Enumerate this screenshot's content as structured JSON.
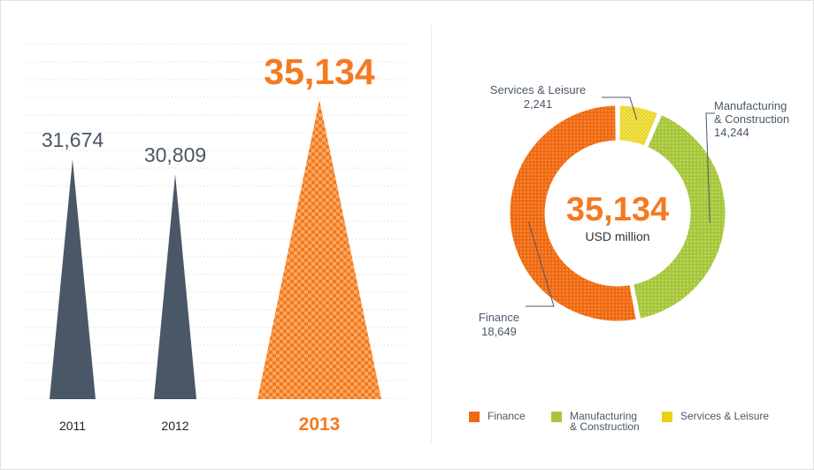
{
  "colors": {
    "dark": "#4a5766",
    "orange": "#f47a20",
    "orange_light": "#f9a863",
    "finance": "#f06a12",
    "manufacturing": "#a6c63a",
    "services": "#e8d214",
    "text": "#4a5868",
    "grid": "#d6d6d6"
  },
  "chart_data": [
    {
      "type": "bar",
      "categories": [
        "2011",
        "2012",
        "2013"
      ],
      "values": [
        31674,
        30809,
        35134
      ],
      "value_labels": [
        "31,674",
        "30,809",
        "35,134"
      ],
      "ylim": [
        17700,
        35134
      ],
      "grid": true,
      "highlight_index": 2
    },
    {
      "type": "pie",
      "center_value": "35,134",
      "center_unit": "USD million",
      "slices": [
        {
          "name": "Services & Leisure",
          "value": 2241,
          "value_label": "2,241",
          "color": "#e8d214",
          "callout": [
            "Services & Leisure",
            "2,241"
          ]
        },
        {
          "name": "Manufacturing & Construction",
          "value": 14244,
          "value_label": "14,244",
          "color": "#a6c63a",
          "callout": [
            "Manufacturing",
            "& Construction",
            "14,244"
          ]
        },
        {
          "name": "Finance",
          "value": 18649,
          "value_label": "18,649",
          "color": "#f06a12",
          "callout": [
            "Finance",
            "18,649"
          ]
        }
      ],
      "legend": [
        {
          "label": "Finance",
          "color": "#f06a12"
        },
        {
          "label": "Manufacturing\n& Construction",
          "color": "#a6c63a"
        },
        {
          "label": "Services & Leisure",
          "color": "#e8d214"
        }
      ]
    }
  ]
}
